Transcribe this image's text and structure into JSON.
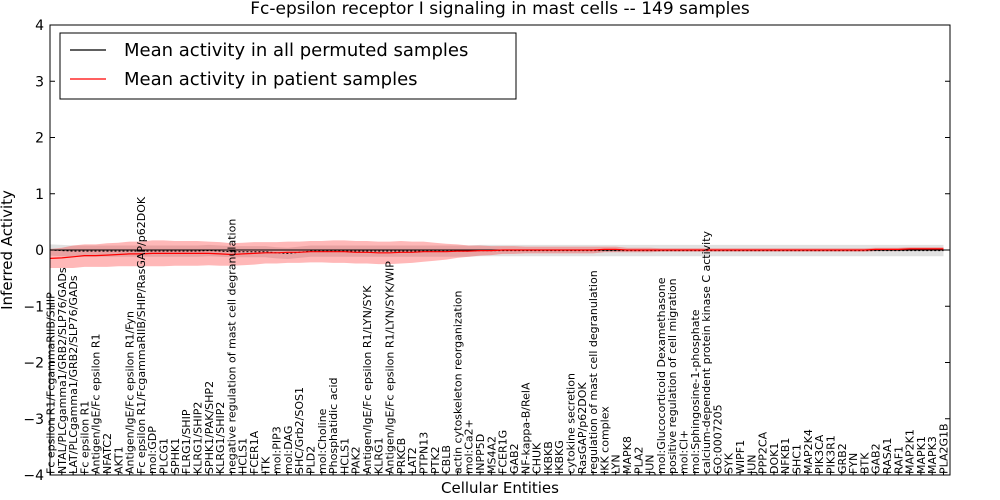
{
  "chart_data": {
    "type": "line",
    "title": "Fc-epsilon receptor I signaling in mast cells -- 149 samples",
    "xlabel": "Cellular Entities",
    "ylabel": "Inferred Activity",
    "ylim": [
      -4,
      4
    ],
    "yticks": [
      "4",
      "3",
      "2",
      "1",
      "0",
      "−1",
      "−2",
      "−3",
      "−4"
    ],
    "legend": {
      "placement": "top-left",
      "entries": [
        {
          "label": "Mean activity in all permuted samples",
          "color": "#000000"
        },
        {
          "label": "Mean activity in patient samples",
          "color": "#ff0000"
        }
      ]
    },
    "categories": [
      "Fc epsilon R1/FcgammaRIIB/SHIP",
      "NTAL/PLCgamma1/GRB2/SLP76/GADs",
      "LAT/PLCgamma1/GRB2/SLP76/GADs",
      "Fc epsilon R1",
      "Antigen/IgE/Fc epsilon R1",
      "NFATC2",
      "AKT1",
      "Antigen/IgE/Fc epsilon R1/Fyn",
      "Fc epsilon R1/FcgammaRIIB/SHIP/RasGAP/p62DOK",
      "mol:GDP",
      "PLCG1",
      "SPHK1",
      "FLRG1/SHIP",
      "KLRG1/SHIP2",
      "SPHK1/PAK/SHP2",
      "KLRG1/SHIP2",
      "negative regulation of mast cell degranulation",
      "HCLS1",
      "FCER1A",
      "ITK",
      "mol:PIP3",
      "mol:DAG",
      "SHC/Grb2/SOS1",
      "PLD2",
      "mol:Choline",
      "Phosphatidic acid",
      "HCLS1",
      "PAK2",
      "Antigen/IgE/Fc epsilon R1/LYN/SYK",
      "KLRG1",
      "Antigen/IgE/Fc epsilon R1/LYN/SYK/WIP",
      "PRKCB",
      "LAT2",
      "PTPN13",
      "PTK2",
      "CBLB",
      "actin cytoskeleton reorganization",
      "mol:Ca2+",
      "INPP5D",
      "MS4A2",
      "FCER1G",
      "GAB2",
      "NF-kappa-B/RelA",
      "CHUK",
      "IKBKB",
      "IKBKG",
      "cytokine secretion",
      "RasGAP/p62DOK",
      "regulation of mast cell degranulation",
      "IKK complex",
      "LYN",
      "MAPK8",
      "PLA2",
      "JUN",
      "mol:Glucocorticoid Dexamethasone",
      "positive regulation of cell migration",
      "mol:Cl+",
      "mol:Sphingosine-1-phosphate",
      "calcium-dependent protein kinase C activity",
      "GO:0007205",
      "SYK",
      "WIPF1",
      "JUN",
      "PPP2CA",
      "DOK1",
      "NFKB1",
      "SHC1",
      "MAP2K4",
      "PIK3CA",
      "PIK3R1",
      "GRB2",
      "FYN",
      "BTK",
      "GAB2",
      "RASA1",
      "RAF1",
      "MAP2K1",
      "MAPK1",
      "MAPK3",
      "PLA2G1B"
    ],
    "series": [
      {
        "name": "Mean activity in all permuted samples",
        "color": "#000000",
        "values": [
          0.0,
          -0.01,
          -0.02,
          -0.02,
          -0.02,
          -0.02,
          -0.02,
          -0.02,
          -0.02,
          -0.02,
          -0.02,
          -0.02,
          -0.02,
          -0.02,
          -0.01,
          -0.02,
          -0.03,
          -0.03,
          -0.03,
          -0.03,
          -0.05,
          -0.06,
          -0.04,
          -0.02,
          -0.02,
          -0.02,
          -0.02,
          -0.02,
          -0.02,
          -0.02,
          -0.02,
          -0.02,
          -0.02,
          -0.02,
          -0.02,
          -0.02,
          -0.02,
          -0.02,
          -0.01,
          -0.01,
          -0.01,
          -0.01,
          -0.01,
          -0.01,
          -0.01,
          -0.01,
          -0.01,
          -0.01,
          -0.01,
          -0.01,
          -0.01,
          -0.01,
          -0.01,
          -0.01,
          -0.01,
          -0.01,
          -0.01,
          -0.01,
          -0.01,
          -0.01,
          -0.01,
          -0.01,
          -0.01,
          -0.01,
          -0.01,
          -0.01,
          -0.01,
          -0.01,
          -0.01,
          -0.01,
          -0.01,
          -0.01,
          -0.01,
          -0.01,
          -0.01,
          -0.01,
          -0.01,
          -0.01,
          -0.01,
          -0.01
        ],
        "band_halfwidth": [
          0.1,
          0.1,
          0.1,
          0.1,
          0.1,
          0.1,
          0.1,
          0.1,
          0.1,
          0.1,
          0.1,
          0.1,
          0.1,
          0.1,
          0.1,
          0.1,
          0.1,
          0.1,
          0.1,
          0.1,
          0.1,
          0.1,
          0.1,
          0.1,
          0.1,
          0.1,
          0.1,
          0.1,
          0.1,
          0.1,
          0.1,
          0.1,
          0.1,
          0.1,
          0.1,
          0.1,
          0.1,
          0.1,
          0.1,
          0.1,
          0.1,
          0.1,
          0.1,
          0.1,
          0.1,
          0.1,
          0.1,
          0.1,
          0.1,
          0.1,
          0.1,
          0.1,
          0.1,
          0.1,
          0.1,
          0.1,
          0.1,
          0.1,
          0.1,
          0.1,
          0.1,
          0.1,
          0.1,
          0.1,
          0.1,
          0.1,
          0.1,
          0.1,
          0.1,
          0.1,
          0.1,
          0.1,
          0.1,
          0.1,
          0.1,
          0.1,
          0.1,
          0.1,
          0.1,
          0.1
        ]
      },
      {
        "name": "Mean activity in patient samples",
        "color": "#ff0000",
        "values": [
          -0.15,
          -0.14,
          -0.12,
          -0.1,
          -0.1,
          -0.09,
          -0.08,
          -0.07,
          -0.07,
          -0.06,
          -0.06,
          -0.06,
          -0.06,
          -0.06,
          -0.06,
          -0.07,
          -0.08,
          -0.07,
          -0.06,
          -0.05,
          -0.05,
          -0.04,
          -0.04,
          -0.03,
          -0.03,
          -0.03,
          -0.03,
          -0.04,
          -0.04,
          -0.05,
          -0.05,
          -0.04,
          -0.04,
          -0.03,
          -0.03,
          -0.03,
          -0.02,
          -0.02,
          -0.01,
          -0.01,
          0.0,
          0.0,
          0.0,
          0.0,
          0.0,
          0.0,
          0.0,
          0.0,
          0.0,
          0.01,
          0.01,
          0.0,
          0.0,
          0.0,
          0.0,
          0.0,
          0.0,
          0.0,
          0.0,
          0.0,
          0.0,
          0.0,
          0.0,
          0.0,
          0.0,
          0.0,
          0.0,
          0.0,
          0.0,
          0.0,
          0.0,
          0.0,
          0.0,
          0.01,
          0.01,
          0.01,
          0.02,
          0.02,
          0.02,
          0.02
        ],
        "band_halfwidth": [
          0.17,
          0.18,
          0.2,
          0.2,
          0.2,
          0.21,
          0.21,
          0.22,
          0.22,
          0.23,
          0.23,
          0.22,
          0.22,
          0.22,
          0.21,
          0.21,
          0.2,
          0.2,
          0.2,
          0.19,
          0.19,
          0.19,
          0.19,
          0.19,
          0.19,
          0.2,
          0.2,
          0.2,
          0.2,
          0.2,
          0.2,
          0.2,
          0.19,
          0.18,
          0.16,
          0.14,
          0.12,
          0.1,
          0.09,
          0.08,
          0.07,
          0.07,
          0.06,
          0.06,
          0.06,
          0.06,
          0.06,
          0.06,
          0.06,
          0.05,
          0.05,
          0.04,
          0.04,
          0.04,
          0.03,
          0.03,
          0.03,
          0.03,
          0.03,
          0.03,
          0.03,
          0.03,
          0.03,
          0.03,
          0.03,
          0.03,
          0.03,
          0.03,
          0.03,
          0.03,
          0.03,
          0.03,
          0.03,
          0.03,
          0.03,
          0.03,
          0.03,
          0.03,
          0.03,
          0.03
        ]
      }
    ],
    "zero_line": true
  }
}
